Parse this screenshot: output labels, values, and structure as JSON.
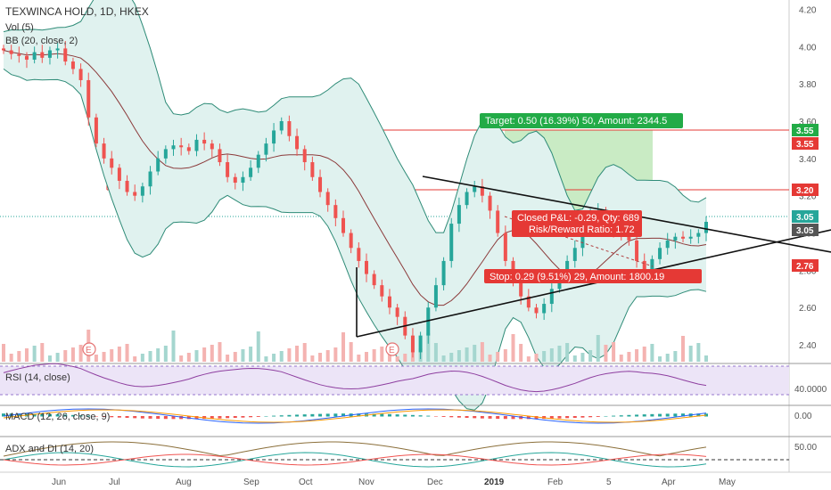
{
  "chart_data": {
    "type": "candlestick",
    "symbol_title": "TEXWINCA HOLD, 1D, HKEX",
    "indicators_overlay": [
      "Vol (5)",
      "BB (20, close, 2)"
    ],
    "x_labels": [
      "Jun",
      "Jul",
      "Aug",
      "Sep",
      "Oct",
      "Nov",
      "Dec",
      "2019",
      "Feb",
      "5",
      "Apr",
      "May"
    ],
    "price_axis": {
      "ticks": [
        "4.20",
        "4.00",
        "3.80",
        "3.60",
        "3.40",
        "3.20",
        "3.00",
        "2.80",
        "2.60",
        "2.40"
      ],
      "ylim": [
        2.3,
        4.25
      ]
    },
    "price_tags": [
      {
        "label": "3.55",
        "value": 3.55,
        "color": "#22ab47"
      },
      {
        "label": "3.55",
        "value": 3.55,
        "color": "#e53935"
      },
      {
        "label": "3.20",
        "value": 3.2,
        "color": "#e53935"
      },
      {
        "label": "3.05",
        "value": 3.05,
        "color": "#26a69a"
      },
      {
        "label": "3.05",
        "value": 3.05,
        "color": "#555555"
      },
      {
        "label": "2.76",
        "value": 2.76,
        "color": "#e53935"
      }
    ],
    "horizontal_lines": [
      3.55,
      3.2,
      3.05
    ],
    "close_series": [
      3.98,
      3.96,
      3.95,
      3.93,
      3.97,
      3.94,
      3.98,
      3.99,
      3.92,
      3.88,
      3.82,
      3.62,
      3.48,
      3.4,
      3.35,
      3.28,
      3.22,
      3.2,
      3.25,
      3.33,
      3.4,
      3.45,
      3.47,
      3.46,
      3.44,
      3.5,
      3.48,
      3.45,
      3.38,
      3.3,
      3.27,
      3.3,
      3.35,
      3.42,
      3.48,
      3.55,
      3.6,
      3.52,
      3.45,
      3.38,
      3.3,
      3.22,
      3.15,
      3.08,
      3.0,
      2.92,
      2.85,
      2.78,
      2.72,
      2.66,
      2.6,
      2.55,
      2.45,
      2.36,
      2.45,
      2.6,
      2.72,
      2.85,
      3.05,
      3.15,
      3.22,
      3.25,
      3.2,
      3.12,
      3.0,
      2.85,
      2.75,
      2.66,
      2.6,
      2.57,
      2.62,
      2.7,
      2.78,
      2.85,
      2.92,
      3.02,
      3.1,
      3.12,
      3.08,
      3.02,
      2.98,
      2.96,
      2.85,
      2.78,
      2.86,
      2.92,
      2.96,
      2.98,
      2.97,
      2.98,
      3.0,
      3.06
    ],
    "trade": {
      "target_text": "Target: 0.50 (16.39%) 50, Amount: 2344.5",
      "stop_text": "Stop: 0.29 (9.51%) 29, Amount: 1800.19",
      "pl_line1": "Closed P&L: -0.29, Qty: 689",
      "pl_line2": "Risk/Reward Ratio: 1.72",
      "entry": 3.05,
      "target": 3.55,
      "stop": 2.76
    },
    "rsi": {
      "label": "RSI (14, close)",
      "tick": "40.0000"
    },
    "macd": {
      "label": "MACD (12, 26, close, 9)",
      "tick": "0.00"
    },
    "adx": {
      "label": "ADX and DI (14, 20)",
      "tick": "50.00"
    },
    "earnings_markers": [
      "E",
      "E"
    ],
    "colors": {
      "up": "#26a69a",
      "down": "#ef5350",
      "bb_fill": "#e0f2ef",
      "bb_line": "#2e8b77",
      "basis": "#8b3a3a",
      "target_fill": "#b7e4b0",
      "stop_fill": "#f7a8a8"
    }
  }
}
